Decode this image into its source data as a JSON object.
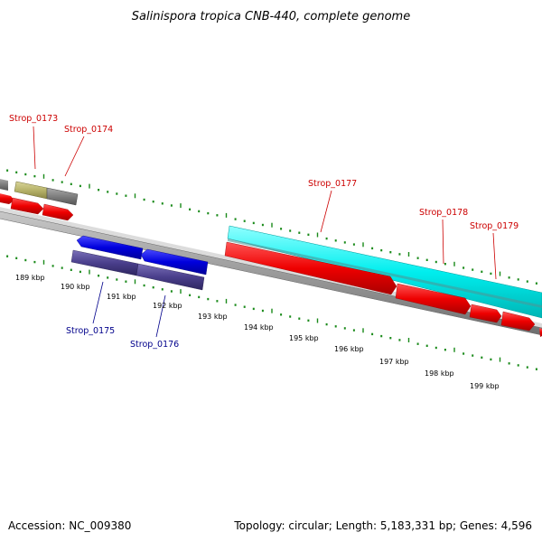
{
  "title": "Salinispora tropica CNB-440, complete genome",
  "footer": {
    "accession": "Accession: NC_009380",
    "summary": "Topology: circular; Length: 5,183,331 bp; Genes: 4,596"
  },
  "colors": {
    "backbone": "#8c8c8c",
    "tick": "#1a8a1a",
    "red_gene": "#ee0000",
    "blue_gene": "#0000dd",
    "navy_gene": "#4a3f8c",
    "cyan_gene": "#00eeee",
    "olive_gene": "#b7b36a",
    "gray_gene": "#7f7f7f",
    "label_red": "#cc0000",
    "label_blue": "#00008b"
  },
  "kbp_labels": [
    "189 kbp",
    "190 kbp",
    "191 kbp",
    "192 kbp",
    "193 kbp",
    "194 kbp",
    "195 kbp",
    "196 kbp",
    "197 kbp",
    "198 kbp",
    "199 kbp"
  ],
  "gene_labels": [
    {
      "id": "l173",
      "text": "Strop_0173",
      "color": "red"
    },
    {
      "id": "l174",
      "text": "Strop_0174",
      "color": "red"
    },
    {
      "id": "l177",
      "text": "Strop_0177",
      "color": "red"
    },
    {
      "id": "l178",
      "text": "Strop_0178",
      "color": "red"
    },
    {
      "id": "l179",
      "text": "Strop_0179",
      "color": "red"
    },
    {
      "id": "l175",
      "text": "Strop_0175",
      "color": "blue"
    },
    {
      "id": "l176",
      "text": "Strop_0176",
      "color": "blue"
    }
  ]
}
